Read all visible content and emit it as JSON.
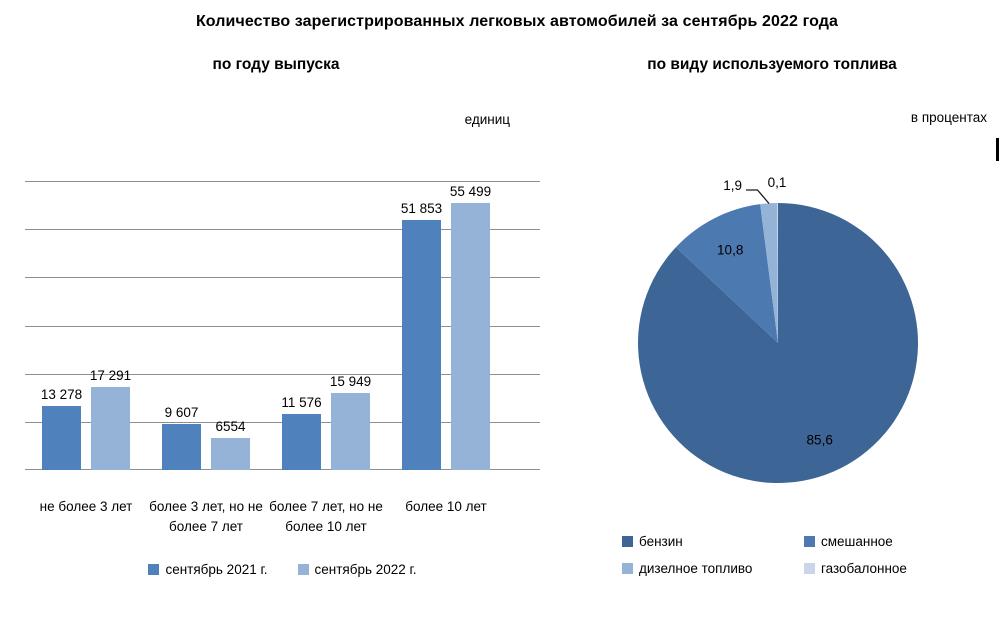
{
  "page_title": "Количество зарегистрированных легковых автомобилей за сентябрь 2022 года",
  "chart_data": [
    {
      "type": "bar",
      "subtitle": "по году выпуска",
      "unit_label": "единиц",
      "categories": [
        "не более 3 лет",
        "более 3 лет, но не более 7 лет",
        "более 7 лет, но не более 10 лет",
        "более 10 лет"
      ],
      "series": [
        {
          "name": "сентябрь 2021 г.",
          "color": "#4F81BC",
          "values": [
            13278,
            9607,
            11576,
            51853
          ],
          "value_labels": [
            "13 278",
            "9 607",
            "11 576",
            "51 853"
          ]
        },
        {
          "name": "сентябрь 2022 г.",
          "color": "#95B3D7",
          "values": [
            17291,
            6554,
            15949,
            55499
          ],
          "value_labels": [
            "17 291",
            "6554",
            "15 949",
            "55 499"
          ]
        }
      ],
      "ylim": [
        0,
        60000
      ],
      "grid_step": 10000,
      "grid": true,
      "y_tick_labels_shown": false,
      "legend_position": "bottom"
    },
    {
      "type": "pie",
      "subtitle": "по виду используемого топлива",
      "unit_label": "в процентах",
      "segments": [
        {
          "label": "бензин",
          "value": 85.6,
          "value_label": "85,6",
          "color": "#3D6595"
        },
        {
          "label": "смешанное",
          "value": 10.8,
          "value_label": "10,8",
          "color": "#4C79AF"
        },
        {
          "label": "дизелное топливо",
          "value": 1.9,
          "value_label": "1,9",
          "color": "#95B3D7"
        },
        {
          "label": "газобалонное",
          "value": 0.1,
          "value_label": "0,1",
          "color": "#C9D6EA"
        }
      ],
      "start_angle_deg": 0,
      "direction": "clockwise",
      "legend_position": "bottom"
    }
  ]
}
